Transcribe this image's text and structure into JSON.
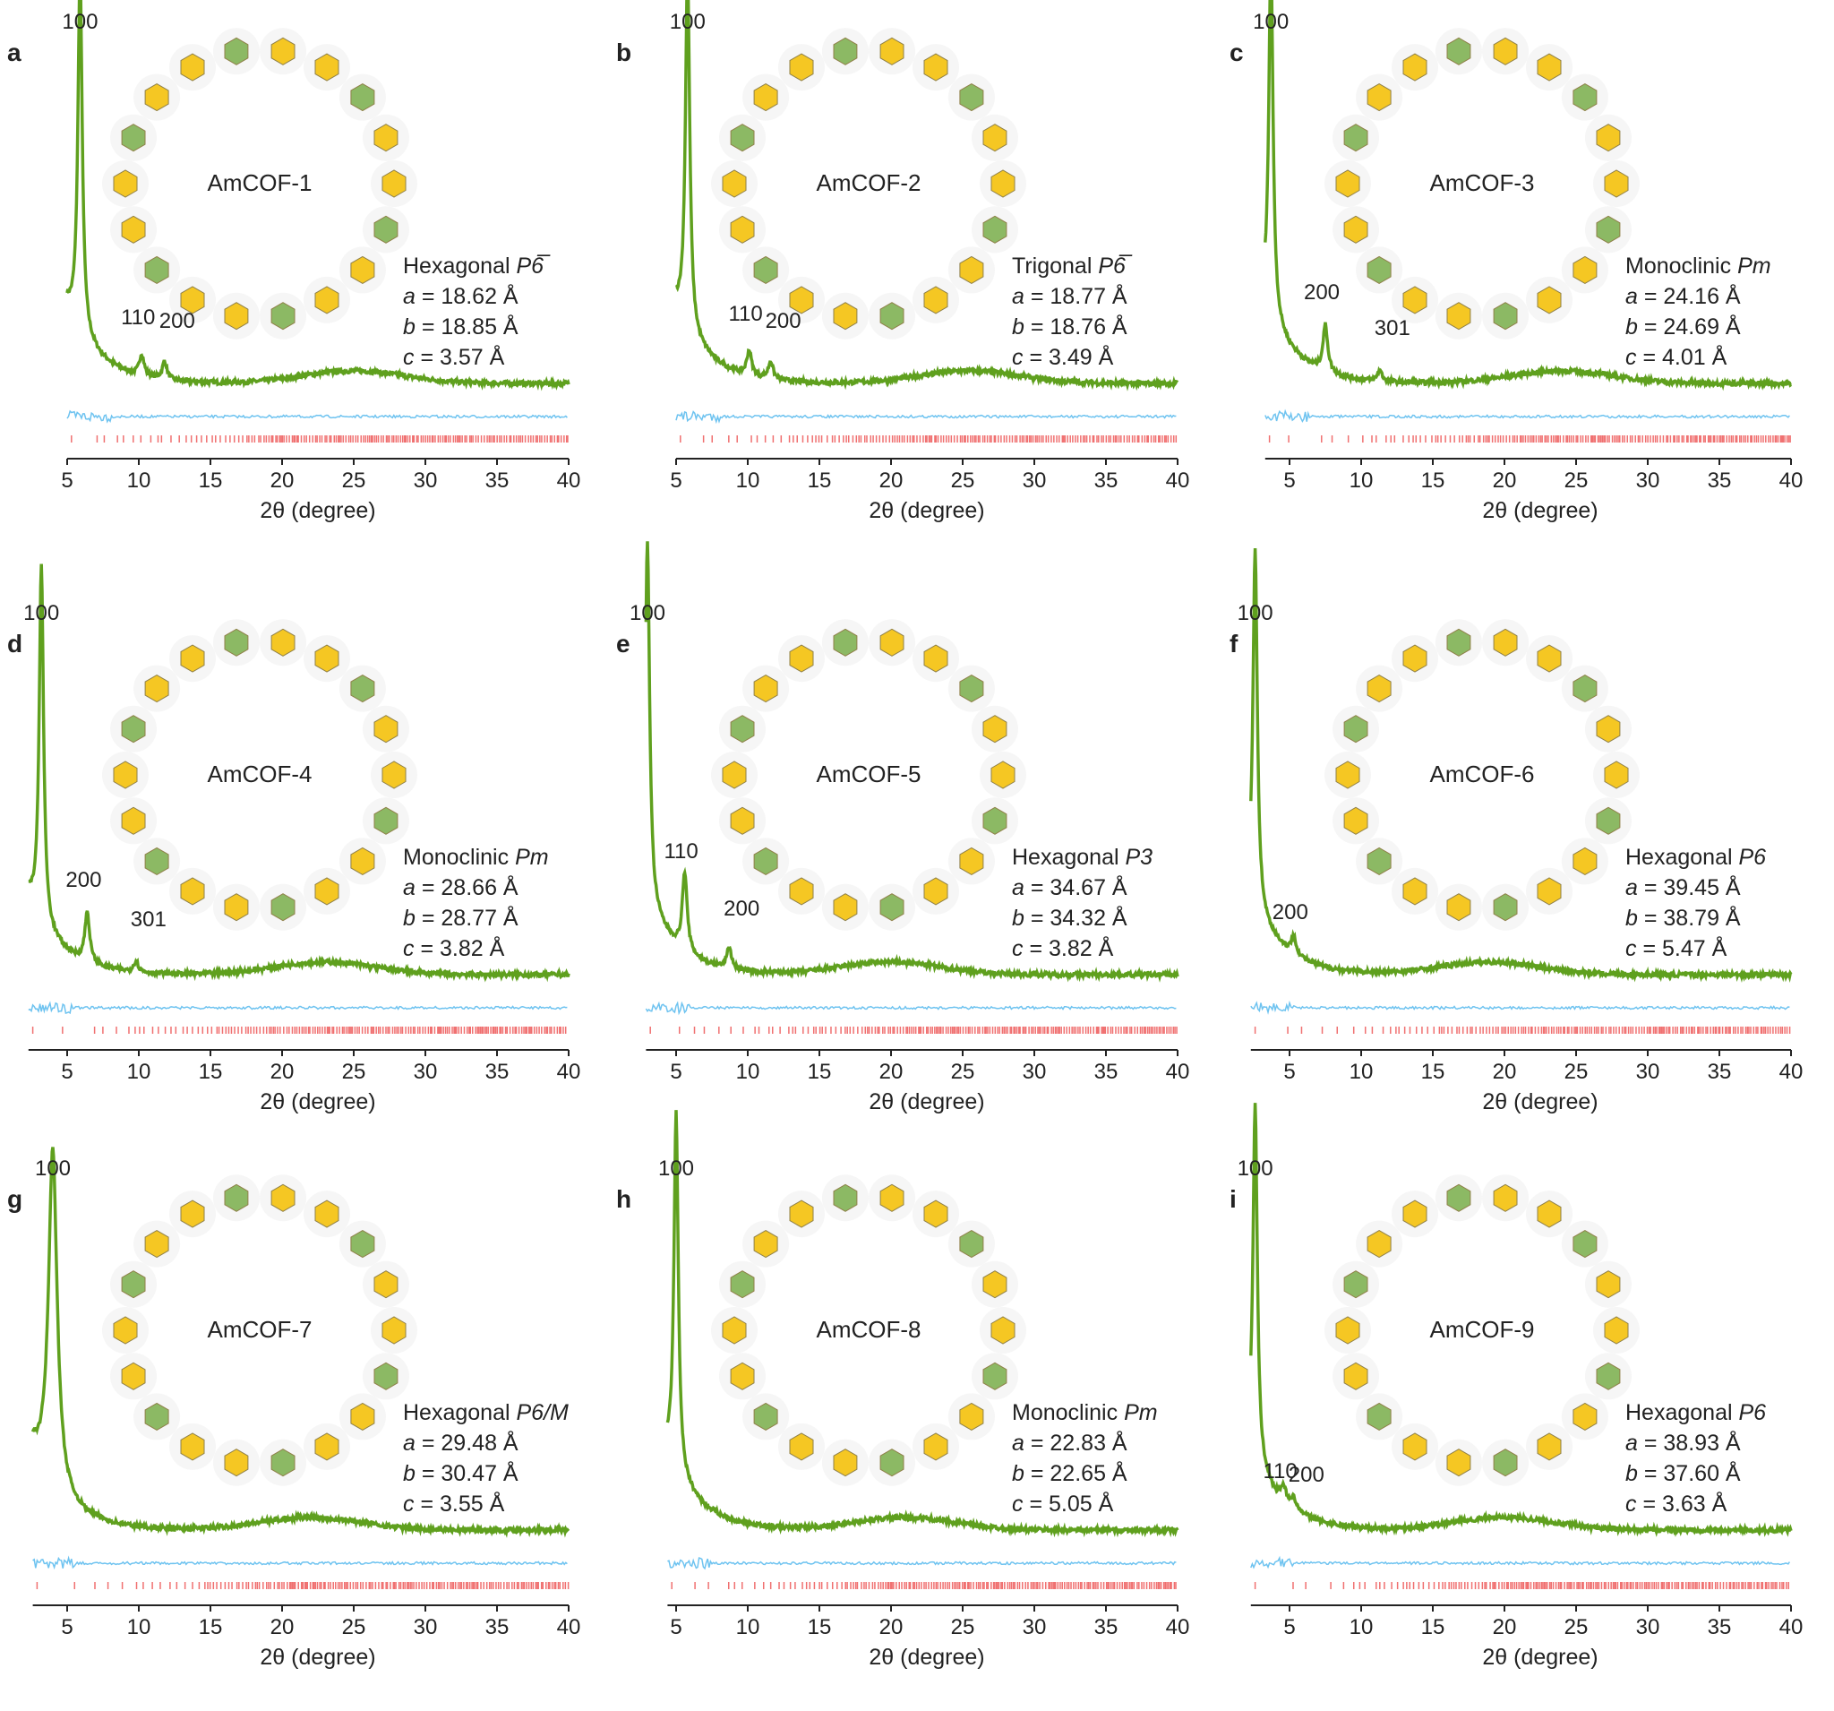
{
  "chart_data": [
    {
      "type": "line",
      "panel": "a",
      "name": "AmCOF-1",
      "crystal_system": "Hexagonal",
      "space_group": "P6̅",
      "lattice": {
        "a": "18.62 Å",
        "b": "18.85 Å",
        "c": "3.57 Å"
      },
      "xlabel": "2θ (degree)",
      "xlim": [
        5,
        40
      ],
      "xticks": [
        "5",
        "10",
        "15",
        "20",
        "25",
        "30",
        "35",
        "40"
      ],
      "peaks": [
        {
          "hkl": "100",
          "x": 5.9,
          "y": 1.0
        },
        {
          "hkl": "110",
          "x": 10.2,
          "y": 0.06
        },
        {
          "hkl": "200",
          "x": 11.8,
          "y": 0.05
        }
      ],
      "hump": 25
    },
    {
      "type": "line",
      "panel": "b",
      "name": "AmCOF-2",
      "crystal_system": "Trigonal",
      "space_group": "P6̅",
      "lattice": {
        "a": "18.77 Å",
        "b": "18.76 Å",
        "c": "3.49 Å"
      },
      "xlabel": "2θ (degree)",
      "xlim": [
        5,
        40
      ],
      "xticks": [
        "5",
        "10",
        "15",
        "20",
        "25",
        "30",
        "35",
        "40"
      ],
      "peaks": [
        {
          "hkl": "100",
          "x": 5.8,
          "y": 1.0
        },
        {
          "hkl": "110",
          "x": 10.1,
          "y": 0.07
        },
        {
          "hkl": "200",
          "x": 11.6,
          "y": 0.05
        }
      ],
      "hump": 25.5
    },
    {
      "type": "line",
      "panel": "c",
      "name": "AmCOF-3",
      "crystal_system": "Monoclinic",
      "space_group": "Pm",
      "lattice": {
        "a": "24.16 Å",
        "b": "24.69 Å",
        "c": "4.01 Å"
      },
      "xlabel": "2θ (degree)",
      "xlim": [
        3.3,
        40
      ],
      "xticks": [
        "5",
        "10",
        "15",
        "20",
        "25",
        "30",
        "35",
        "40"
      ],
      "peaks": [
        {
          "hkl": "100",
          "x": 3.7,
          "y": 1.0
        },
        {
          "hkl": "200",
          "x": 7.5,
          "y": 0.13
        },
        {
          "hkl": "301",
          "x": 11.3,
          "y": 0.03
        }
      ],
      "hump": 24
    },
    {
      "type": "line",
      "panel": "d",
      "name": "AmCOF-4",
      "crystal_system": "Monoclinic",
      "space_group": "Pm",
      "lattice": {
        "a": "28.66 Å",
        "b": "28.77 Å",
        "c": "3.82 Å"
      },
      "xlabel": "2θ (degree)",
      "xlim": [
        2.3,
        40
      ],
      "xticks": [
        "5",
        "10",
        "15",
        "20",
        "25",
        "30",
        "35",
        "40"
      ],
      "peaks": [
        {
          "hkl": "100",
          "x": 3.2,
          "y": 1.0
        },
        {
          "hkl": "200",
          "x": 6.4,
          "y": 0.14
        },
        {
          "hkl": "301",
          "x": 9.8,
          "y": 0.03
        }
      ],
      "hump": 23
    },
    {
      "type": "line",
      "panel": "e",
      "name": "AmCOF-5",
      "crystal_system": "Hexagonal",
      "space_group": "P3",
      "lattice": {
        "a": "34.67 Å",
        "b": "34.32 Å",
        "c": "3.82 Å"
      },
      "xlabel": "2θ (degree)",
      "xlim": [
        2.9,
        40
      ],
      "xticks": [
        "5",
        "10",
        "15",
        "20",
        "25",
        "30",
        "35",
        "40"
      ],
      "peaks": [
        {
          "hkl": "100",
          "x": 3.0,
          "y": 1.0
        },
        {
          "hkl": "110",
          "x": 5.6,
          "y": 0.22
        },
        {
          "hkl": "200",
          "x": 8.7,
          "y": 0.06
        }
      ],
      "hump": 20
    },
    {
      "type": "line",
      "panel": "f",
      "name": "AmCOF-6",
      "crystal_system": "Hexagonal",
      "space_group": "P6",
      "lattice": {
        "a": "39.45 Å",
        "b": "38.79 Å",
        "c": "5.47 Å"
      },
      "xlabel": "2θ (degree)",
      "xlim": [
        2.3,
        40
      ],
      "xticks": [
        "5",
        "10",
        "15",
        "20",
        "25",
        "30",
        "35",
        "40"
      ],
      "peaks": [
        {
          "hkl": "100",
          "x": 2.6,
          "y": 1.0
        },
        {
          "hkl": "200",
          "x": 5.3,
          "y": 0.05
        }
      ],
      "hump": 19
    },
    {
      "type": "line",
      "panel": "g",
      "name": "AmCOF-7",
      "crystal_system": "Hexagonal",
      "space_group": "P6/M",
      "lattice": {
        "a": "29.48 Å",
        "b": "30.47 Å",
        "c": "3.55 Å"
      },
      "xlabel": "2θ (degree)",
      "xlim": [
        2.6,
        40
      ],
      "xticks": [
        "5",
        "10",
        "15",
        "20",
        "25",
        "30",
        "35",
        "40"
      ],
      "peaks": [
        {
          "hkl": "100",
          "x": 4.0,
          "y": 0.95
        }
      ],
      "hump": 22
    },
    {
      "type": "line",
      "panel": "h",
      "name": "AmCOF-8",
      "crystal_system": "Monoclinic",
      "space_group": "Pm",
      "lattice": {
        "a": "22.83 Å",
        "b": "22.65 Å",
        "c": "5.05 Å"
      },
      "xlabel": "2θ (degree)",
      "xlim": [
        4.4,
        40
      ],
      "xticks": [
        "5",
        "10",
        "15",
        "20",
        "25",
        "30",
        "35",
        "40"
      ],
      "peaks": [
        {
          "hkl": "100",
          "x": 5.0,
          "y": 1.0
        }
      ],
      "hump": 21
    },
    {
      "type": "line",
      "panel": "i",
      "name": "AmCOF-9",
      "crystal_system": "Hexagonal",
      "space_group": "P6",
      "lattice": {
        "a": "38.93 Å",
        "b": "37.60 Å",
        "c": "3.63 Å"
      },
      "xlabel": "2θ (degree)",
      "xlim": [
        2.3,
        40
      ],
      "xticks": [
        "5",
        "10",
        "15",
        "20",
        "25",
        "30",
        "35",
        "40"
      ],
      "peaks": [
        {
          "hkl": "100",
          "x": 2.6,
          "y": 1.0
        },
        {
          "hkl": "110",
          "x": 4.6,
          "y": 0.04
        },
        {
          "hkl": "200",
          "x": 5.3,
          "y": 0.03
        }
      ],
      "hump": 20
    }
  ],
  "colors": {
    "experimental": "#5fa01e",
    "difference": "#6ec3f0",
    "bragg": "#f07070",
    "aromatic": "#f5c518",
    "amide_ring": "#86b65c"
  }
}
